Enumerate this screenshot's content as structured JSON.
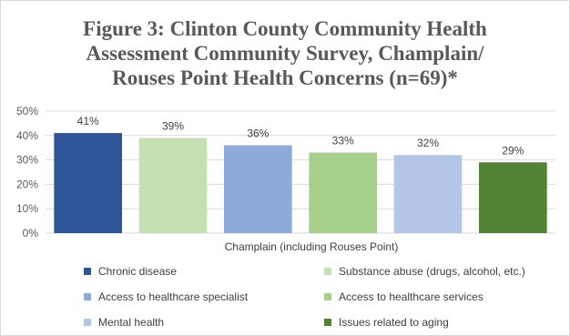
{
  "chart_data": {
    "type": "bar",
    "title_lines": [
      "Figure 3: Clinton County Community Health",
      "Assessment Community Survey, Champlain/",
      "Rouses Point Health Concerns (n=69)*"
    ],
    "xlabel": "Champlain (including Rouses Point)",
    "ylabel": "",
    "ylim": [
      0,
      50
    ],
    "yticks": [
      "0%",
      "10%",
      "20%",
      "30%",
      "40%",
      "50%"
    ],
    "grid": true,
    "legend": "bottom",
    "series": [
      {
        "name": "Chronic disease",
        "value": 41,
        "label": "41%",
        "color": "#2e5597"
      },
      {
        "name": "Substance abuse (drugs, alcohol, etc.)",
        "value": 39,
        "label": "39%",
        "color": "#c5e0b3"
      },
      {
        "name": "Access to healthcare specialist",
        "value": 36,
        "label": "36%",
        "color": "#8eaadb"
      },
      {
        "name": "Access to healthcare services",
        "value": 33,
        "label": "33%",
        "color": "#a8d08d"
      },
      {
        "name": "Mental health",
        "value": 32,
        "label": "32%",
        "color": "#b4c6e7"
      },
      {
        "name": "Issues related to aging",
        "value": 29,
        "label": "29%",
        "color": "#548235"
      }
    ]
  }
}
